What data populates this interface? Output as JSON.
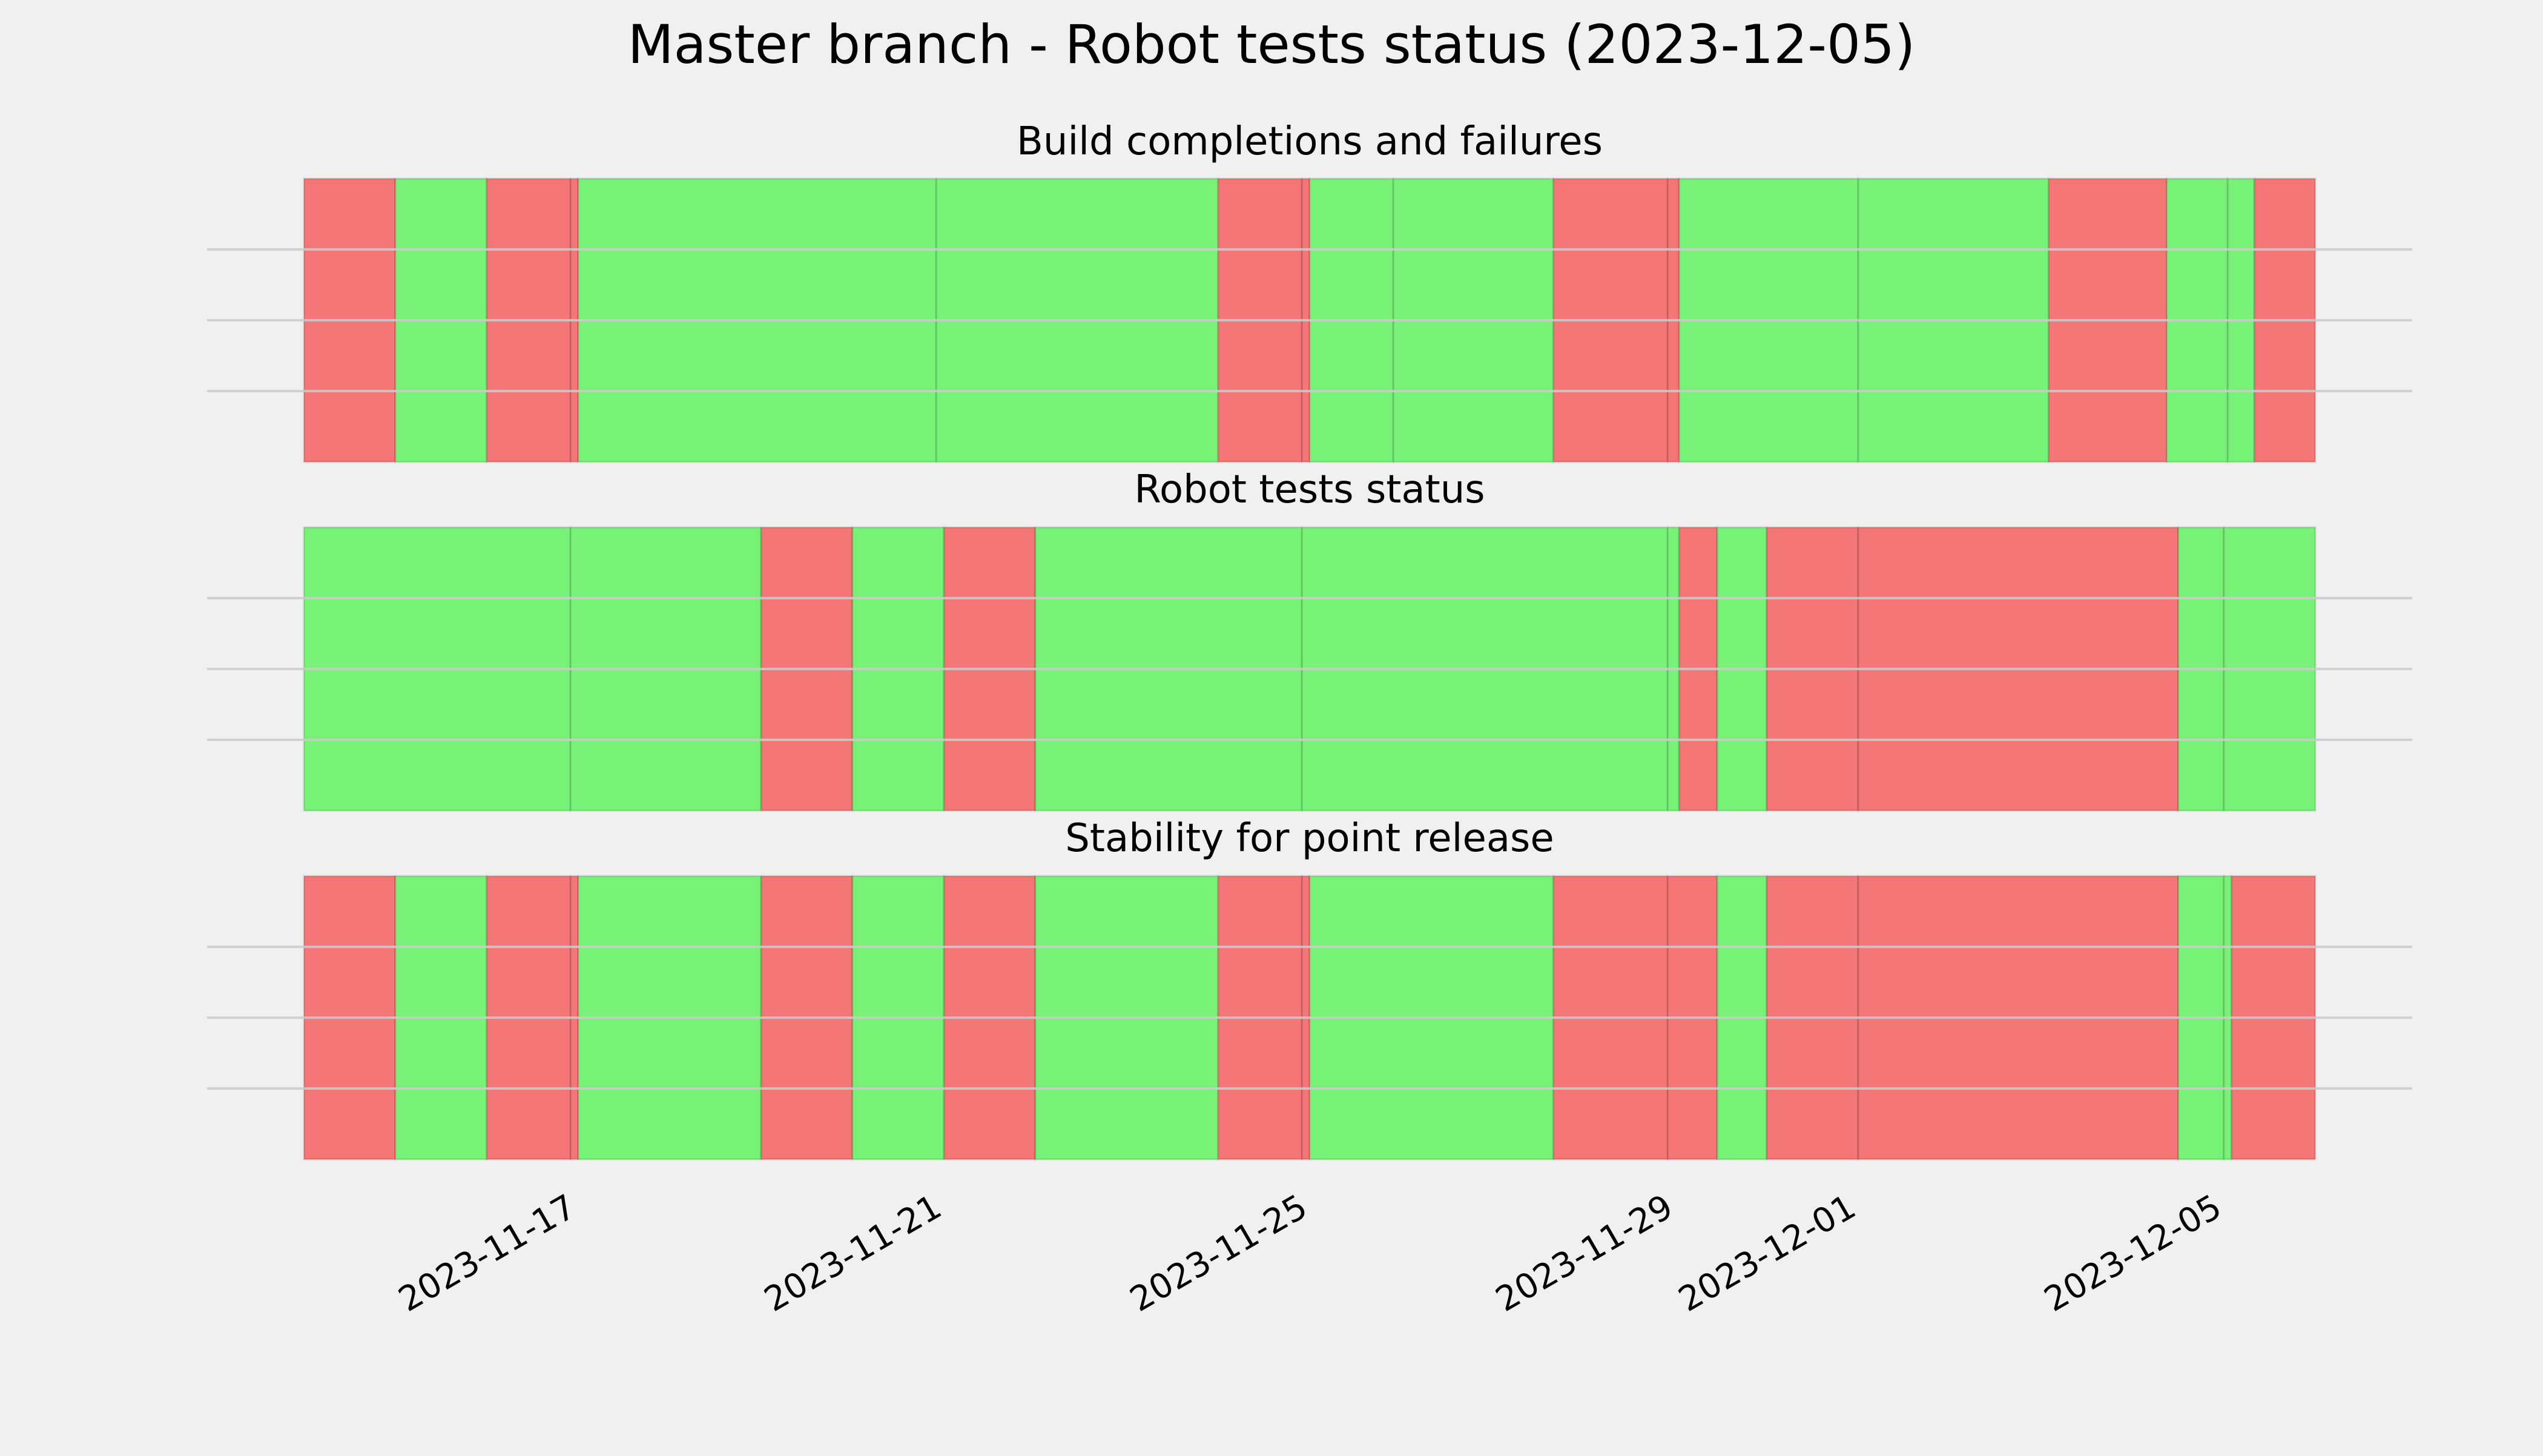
{
  "colors": {
    "background": "#f0f0f0",
    "pass": "#77f277",
    "fail": "#f47676",
    "grid": "#cbcbcb"
  },
  "chart_data": {
    "title": "Master branch - Robot tests status (2023-12-05)",
    "type": "timeline",
    "x_axis": {
      "type": "date",
      "range": [
        "2023-11-14",
        "2023-12-06"
      ],
      "ticks": [
        "2023-11-17",
        "2023-11-21",
        "2023-11-25",
        "2023-11-29",
        "2023-12-01",
        "2023-12-05"
      ]
    },
    "grid": true,
    "panels": [
      {
        "title": "Build completions and failures",
        "segments": [
          {
            "start": "2023-11-14 00:00",
            "end": "2023-11-15 00:00",
            "status": "fail"
          },
          {
            "start": "2023-11-15 00:00",
            "end": "2023-11-16 00:00",
            "status": "pass"
          },
          {
            "start": "2023-11-16 00:00",
            "end": "2023-11-16 22:00",
            "status": "fail"
          },
          {
            "start": "2023-11-16 22:00",
            "end": "2023-11-17 00:00",
            "status": "fail"
          },
          {
            "start": "2023-11-17 00:00",
            "end": "2023-11-20 22:00",
            "status": "pass"
          },
          {
            "start": "2023-11-20 22:00",
            "end": "2023-11-24 00:00",
            "status": "pass"
          },
          {
            "start": "2023-11-24 00:00",
            "end": "2023-11-24 22:00",
            "status": "fail"
          },
          {
            "start": "2023-11-24 22:00",
            "end": "2023-11-25 00:00",
            "status": "fail"
          },
          {
            "start": "2023-11-25 00:00",
            "end": "2023-11-25 22:00",
            "status": "pass"
          },
          {
            "start": "2023-11-25 22:00",
            "end": "2023-11-27 16:00",
            "status": "pass"
          },
          {
            "start": "2023-11-27 16:00",
            "end": "2023-11-28 22:00",
            "status": "fail"
          },
          {
            "start": "2023-11-28 22:00",
            "end": "2023-11-29 01:00",
            "status": "fail"
          },
          {
            "start": "2023-11-29 01:00",
            "end": "2023-12-01 00:00",
            "status": "pass"
          },
          {
            "start": "2023-12-01 00:00",
            "end": "2023-12-03 02:00",
            "status": "pass"
          },
          {
            "start": "2023-12-03 02:00",
            "end": "2023-12-04 09:00",
            "status": "fail"
          },
          {
            "start": "2023-12-04 09:00",
            "end": "2023-12-05 01:00",
            "status": "pass"
          },
          {
            "start": "2023-12-05 01:00",
            "end": "2023-12-05 08:00",
            "status": "pass"
          },
          {
            "start": "2023-12-05 08:00",
            "end": "2023-12-06 00:00",
            "status": "fail"
          }
        ]
      },
      {
        "title": "Robot tests status",
        "segments": [
          {
            "start": "2023-11-14 00:00",
            "end": "2023-11-16 22:00",
            "status": "pass"
          },
          {
            "start": "2023-11-16 22:00",
            "end": "2023-11-19 00:00",
            "status": "pass"
          },
          {
            "start": "2023-11-19 00:00",
            "end": "2023-11-20 00:00",
            "status": "fail"
          },
          {
            "start": "2023-11-20 00:00",
            "end": "2023-11-21 00:00",
            "status": "pass"
          },
          {
            "start": "2023-11-21 00:00",
            "end": "2023-11-22 00:00",
            "status": "fail"
          },
          {
            "start": "2023-11-22 00:00",
            "end": "2023-11-24 22:00",
            "status": "pass"
          },
          {
            "start": "2023-11-24 22:00",
            "end": "2023-11-28 22:00",
            "status": "pass"
          },
          {
            "start": "2023-11-28 22:00",
            "end": "2023-11-29 01:00",
            "status": "pass"
          },
          {
            "start": "2023-11-29 01:00",
            "end": "2023-11-29 11:00",
            "status": "fail"
          },
          {
            "start": "2023-11-29 11:00",
            "end": "2023-11-30 00:00",
            "status": "pass"
          },
          {
            "start": "2023-11-30 00:00",
            "end": "2023-12-01 00:00",
            "status": "fail"
          },
          {
            "start": "2023-12-01 00:00",
            "end": "2023-12-04 12:00",
            "status": "fail"
          },
          {
            "start": "2023-12-04 12:00",
            "end": "2023-12-05 00:00",
            "status": "pass"
          },
          {
            "start": "2023-12-05 00:00",
            "end": "2023-12-06 00:00",
            "status": "pass"
          }
        ]
      },
      {
        "title": "Stability for point release",
        "segments": [
          {
            "start": "2023-11-14 00:00",
            "end": "2023-11-15 00:00",
            "status": "fail"
          },
          {
            "start": "2023-11-15 00:00",
            "end": "2023-11-16 00:00",
            "status": "pass"
          },
          {
            "start": "2023-11-16 00:00",
            "end": "2023-11-16 22:00",
            "status": "fail"
          },
          {
            "start": "2023-11-16 22:00",
            "end": "2023-11-17 00:00",
            "status": "fail"
          },
          {
            "start": "2023-11-17 00:00",
            "end": "2023-11-19 00:00",
            "status": "pass"
          },
          {
            "start": "2023-11-19 00:00",
            "end": "2023-11-20 00:00",
            "status": "fail"
          },
          {
            "start": "2023-11-20 00:00",
            "end": "2023-11-21 00:00",
            "status": "pass"
          },
          {
            "start": "2023-11-21 00:00",
            "end": "2023-11-22 00:00",
            "status": "fail"
          },
          {
            "start": "2023-11-22 00:00",
            "end": "2023-11-24 00:00",
            "status": "pass"
          },
          {
            "start": "2023-11-24 00:00",
            "end": "2023-11-24 22:00",
            "status": "fail"
          },
          {
            "start": "2023-11-24 22:00",
            "end": "2023-11-25 00:00",
            "status": "fail"
          },
          {
            "start": "2023-11-25 00:00",
            "end": "2023-11-27 16:00",
            "status": "pass"
          },
          {
            "start": "2023-11-27 16:00",
            "end": "2023-11-28 22:00",
            "status": "fail"
          },
          {
            "start": "2023-11-28 22:00",
            "end": "2023-11-29 11:00",
            "status": "fail"
          },
          {
            "start": "2023-11-29 11:00",
            "end": "2023-11-30 00:00",
            "status": "pass"
          },
          {
            "start": "2023-11-30 00:00",
            "end": "2023-12-01 00:00",
            "status": "fail"
          },
          {
            "start": "2023-12-01 00:00",
            "end": "2023-12-04 12:00",
            "status": "fail"
          },
          {
            "start": "2023-12-04 12:00",
            "end": "2023-12-05 00:00",
            "status": "pass"
          },
          {
            "start": "2023-12-05 00:00",
            "end": "2023-12-05 02:00",
            "status": "pass"
          },
          {
            "start": "2023-12-05 02:00",
            "end": "2023-12-06 00:00",
            "status": "fail"
          }
        ]
      }
    ]
  }
}
